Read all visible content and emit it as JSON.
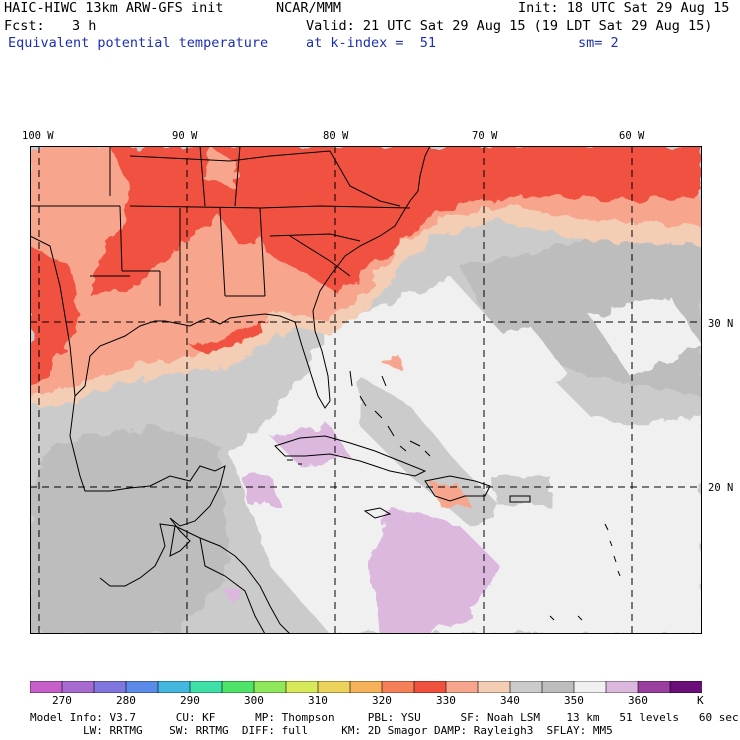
{
  "header": {
    "model": "HAIC-HIWC 13km ARW-GFS init",
    "org": "NCAR/MMM",
    "init": "Init: 18 UTC Sat 29 Aug 15",
    "fcst_label": "Fcst:",
    "fcst_value": "3 h",
    "valid": "Valid: 21 UTC Sat 29 Aug 15 (19 LDT Sat 29 Aug 15)",
    "field": "Equivalent potential temperature",
    "level": "at k-index =  51",
    "smoothing": "sm= 2"
  },
  "map": {
    "lon_labels": [
      "100 W",
      "90 W",
      "80 W",
      "70 W",
      "60 W"
    ],
    "lat_labels": [
      "30 N",
      "20 N"
    ],
    "colors": {
      "red": "#f0513f",
      "salmon": "#f7a58c",
      "peach": "#f3cdb4",
      "lightgray": "#cbcbcb",
      "gray": "#bdbdbd",
      "white": "#f0f0f0",
      "lavender": "#dcb7de"
    }
  },
  "colorbar": {
    "labels": [
      "270",
      "280",
      "290",
      "300",
      "310",
      "320",
      "330",
      "340",
      "350",
      "360"
    ],
    "unit": "K",
    "colors": [
      "#c65fc9",
      "#a66ad0",
      "#7f76e0",
      "#5b8ae8",
      "#44b7e0",
      "#3ee0a8",
      "#4fe36a",
      "#8fe85a",
      "#d7e85a",
      "#ecd25a",
      "#f6b25a",
      "#f58058",
      "#f0513f",
      "#f7a58c",
      "#f3cdb4",
      "#cbcbcb",
      "#bdbdbd",
      "#f0f0f0",
      "#dcb7de",
      "#9a3f9e",
      "#6a0f7a"
    ]
  },
  "footer": {
    "line1": "Model Info: V3.7      CU: KF      MP: Thompson     PBL: YSU      SF: Noah LSM    13 km   51 levels   60 sec",
    "line2": "        LW: RRTMG    SW: RRTMG  DIFF: full     KM: 2D Smagor DAMP: Rayleigh3  SFLAY: MM5"
  }
}
